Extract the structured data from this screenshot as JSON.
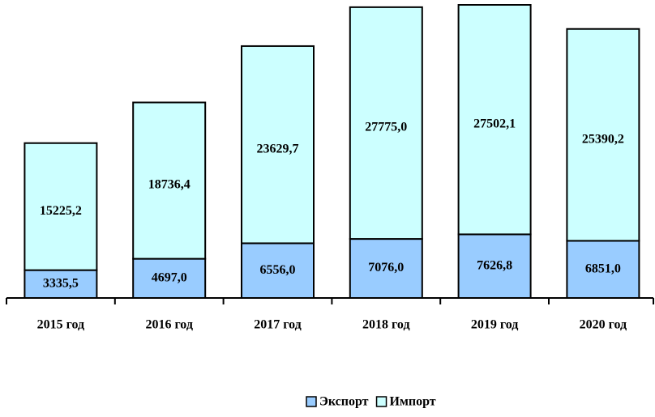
{
  "chart_data": {
    "type": "stacked_bar",
    "categories": [
      "2015 год",
      "2016 год",
      "2017 год",
      "2018 год",
      "2019 год",
      "2020 год"
    ],
    "series": [
      {
        "name": "Экспорт",
        "color": "#99ccff",
        "values": [
          3335.5,
          4697.0,
          6556.0,
          7076.0,
          7626.8,
          6851.0
        ],
        "value_labels": [
          "3335,5",
          "4697,0",
          "6556,0",
          "7076,0",
          "7626,8",
          "6851,0"
        ]
      },
      {
        "name": "Импорт",
        "color": "#ccffff",
        "values": [
          15225.2,
          18736.4,
          23629.7,
          27775.0,
          27502.1,
          25390.2
        ],
        "value_labels": [
          "15225,2",
          "18736,4",
          "23629,7",
          "27775,0",
          "27502,1",
          "25390,2"
        ]
      }
    ],
    "legend": "bottom"
  }
}
